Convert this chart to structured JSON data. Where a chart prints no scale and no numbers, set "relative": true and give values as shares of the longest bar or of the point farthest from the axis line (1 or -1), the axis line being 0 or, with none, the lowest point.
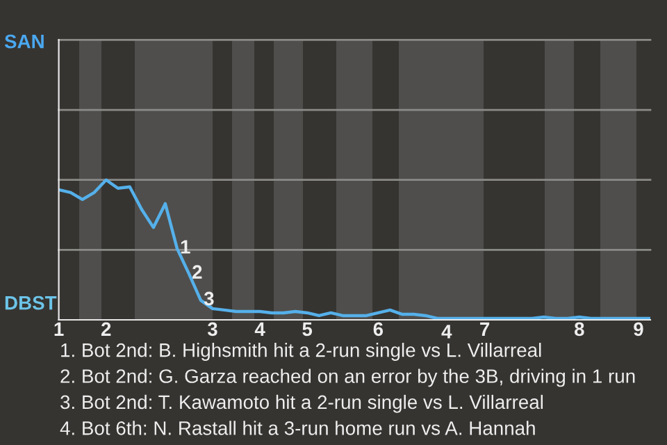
{
  "chart_data": {
    "type": "line",
    "relative": true,
    "categories": [
      "1",
      null,
      null,
      null,
      "2",
      null,
      null,
      null,
      null,
      null,
      null,
      null,
      null,
      "3",
      null,
      null,
      null,
      "4",
      null,
      null,
      null,
      "5",
      null,
      null,
      null,
      null,
      null,
      "6",
      null,
      null,
      null,
      null,
      null,
      null,
      null,
      null,
      "7",
      null,
      null,
      null,
      null,
      null,
      null,
      null,
      "8",
      null,
      null,
      null,
      null,
      "9",
      null
    ],
    "series": [
      {
        "color": "#55b0ea",
        "values": [
          0.93,
          0.91,
          0.86,
          0.91,
          1,
          0.94,
          0.95,
          0.79,
          0.66,
          0.83,
          0.51,
          0.33,
          0.14,
          0.08,
          0.07,
          0.06,
          0.06,
          0.06,
          0.05,
          0.05,
          0.06,
          0.05,
          0.03,
          0.05,
          0.03,
          0.03,
          0.03,
          0.05,
          0.07,
          0.04,
          0.04,
          0.03,
          0.01,
          0.01,
          0.01,
          0.01,
          0.01,
          0.01,
          0.01,
          0.01,
          0.01,
          0.02,
          0.01,
          0.01,
          0.02,
          0.01,
          0.01,
          0.01,
          0.01,
          0.01,
          0.01
        ]
      }
    ],
    "marker": "none",
    "line_style": "solid",
    "ref_lines": [
      {
        "axis": "y",
        "value": 0.5,
        "color": "#8a8a88"
      },
      {
        "axis": "y",
        "value": 1,
        "color": "#8a8a88"
      },
      {
        "axis": "y",
        "value": 1.5,
        "color": "#8a8a88"
      },
      {
        "axis": "y",
        "value": 2,
        "color": "#8a8a88"
      }
    ],
    "annotations": [
      {
        "text": "1",
        "y": 0.51
      },
      {
        "text": "2",
        "y": 0.33
      },
      {
        "text": "3",
        "y": 0.14
      },
      {
        "text": "4",
        "y": 0.01
      },
      "SAN",
      "DBST",
      "1. Bot 2nd: B. Highsmith hit a 2-run single vs L. Villarreal",
      "2. Bot 2nd: G. Garza reached on an error by the 3B, driving in 1 run",
      "3. Bot 2nd: T. Kawamoto hit a 2-run single vs L. Villarreal",
      "4. Bot 6th: N. Rastall hit a 3-run home run vs A. Hannah"
    ]
  }
}
